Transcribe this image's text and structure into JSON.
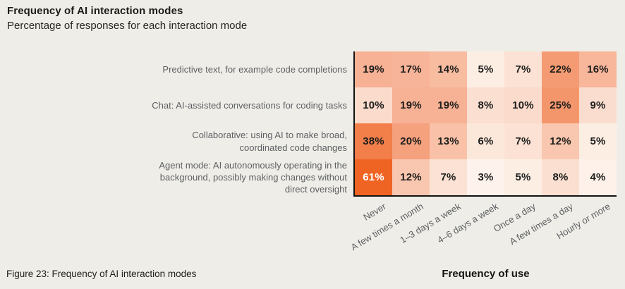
{
  "chart_data": {
    "type": "heatmap",
    "title": "Frequency of AI interaction modes",
    "subtitle": "Percentage of responses for each interaction mode",
    "xlabel": "Frequency of use",
    "unit": "%",
    "rows": [
      "Predictive text, for example code completions",
      "Chat: AI-assisted conversations for coding tasks",
      "Collaborative: using AI to make broad,\ncoordinated code changes",
      "Agent mode: AI autonomously operating in the\nbackground, possibly making changes without\ndirect oversight"
    ],
    "columns": [
      "Never",
      "A few times a month",
      "1–3 days a week",
      "4–6 days a week",
      "Once a day",
      "A few times a day",
      "Hourly or more"
    ],
    "values": [
      [
        19,
        17,
        14,
        5,
        7,
        22,
        16
      ],
      [
        10,
        19,
        19,
        8,
        10,
        25,
        9
      ],
      [
        38,
        20,
        13,
        6,
        7,
        12,
        5
      ],
      [
        61,
        12,
        7,
        3,
        5,
        8,
        4
      ]
    ],
    "value_colors": {
      "3": "#fef3ec",
      "4": "#fdf1e9",
      "5": "#fdeee3",
      "6": "#fce8db",
      "7": "#fce2d4",
      "8": "#fbdfd1",
      "9": "#fbddcf",
      "10": "#fadbcc",
      "12": "#f9c7af",
      "13": "#f9c2a8",
      "14": "#f8bca1",
      "16": "#f8b69b",
      "17": "#f8b499",
      "19": "#f7b195",
      "20": "#f5a17d",
      "22": "#f49b73",
      "25": "#f4966c",
      "38": "#f27e4a",
      "61": "#ef6423"
    },
    "dark_text_color": "#1d1d1b",
    "light_text_color": "#ffffff",
    "light_text_threshold": 55,
    "axis_color": "#131313",
    "legend_position": "none",
    "grid": false
  },
  "figure_caption": "Figure 23: Frequency of AI interaction modes",
  "page": {
    "background_color": "#efede7",
    "label_gray": "#5d6064"
  }
}
